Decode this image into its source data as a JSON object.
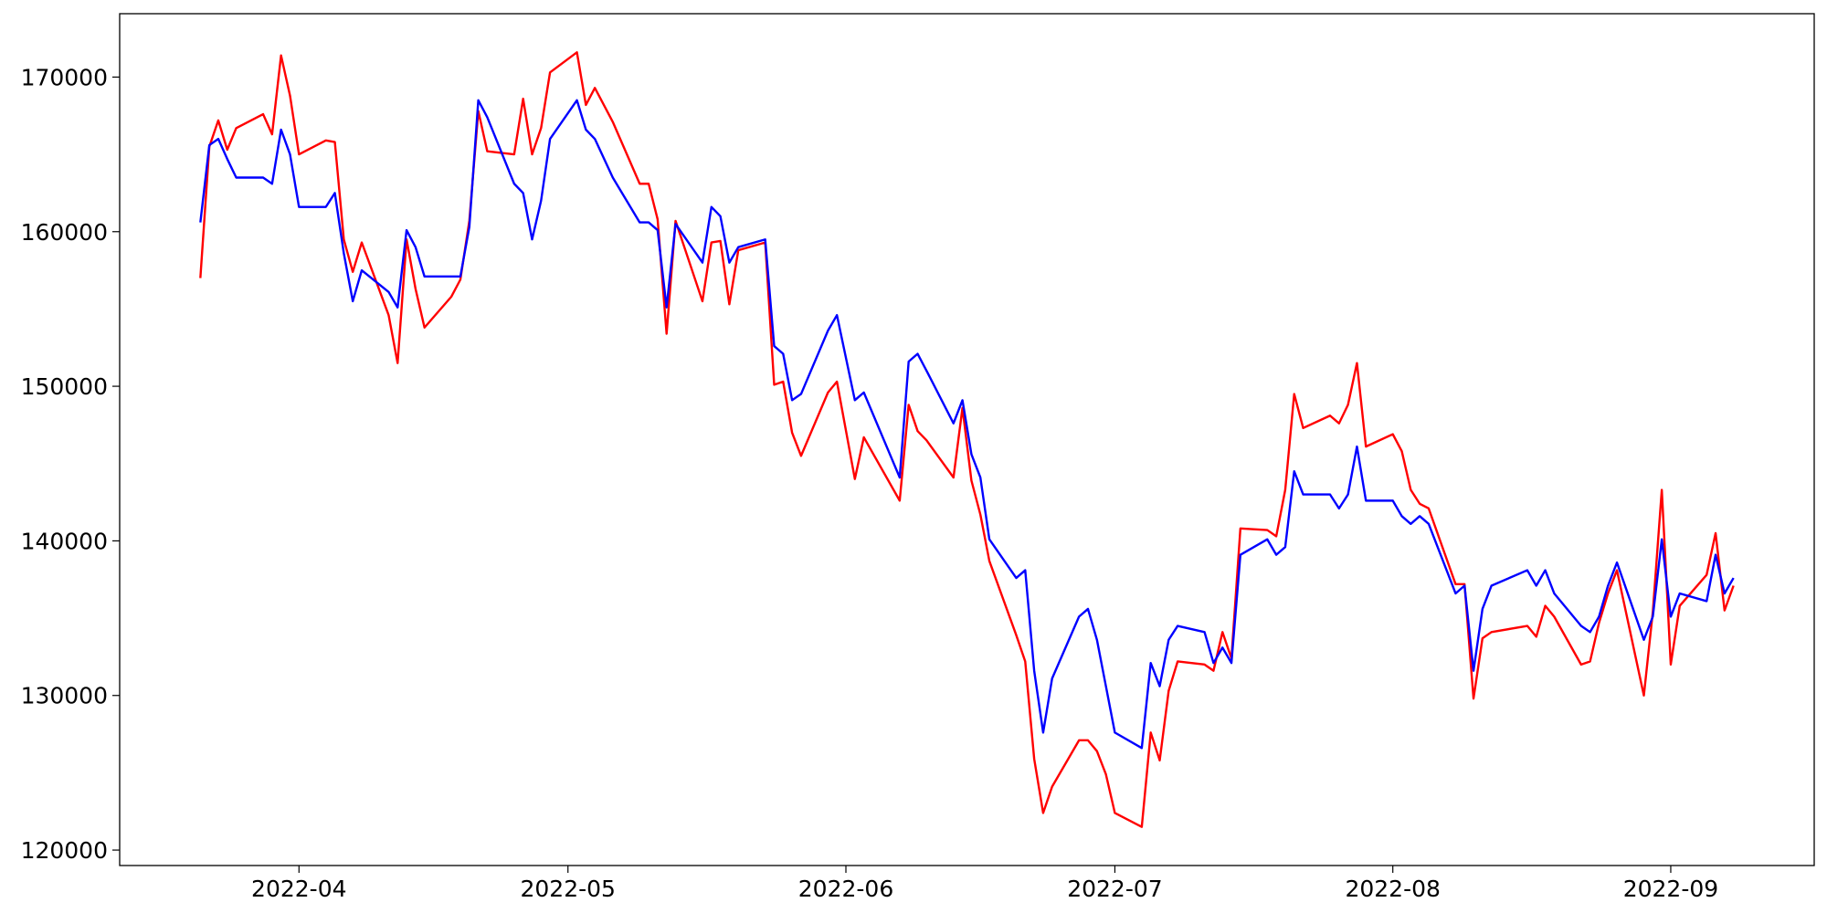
{
  "chart_data": {
    "type": "line",
    "x": [
      "2022-03-21",
      "2022-03-22",
      "2022-03-23",
      "2022-03-24",
      "2022-03-25",
      "2022-03-28",
      "2022-03-29",
      "2022-03-30",
      "2022-03-31",
      "2022-04-01",
      "2022-04-04",
      "2022-04-05",
      "2022-04-06",
      "2022-04-07",
      "2022-04-08",
      "2022-04-11",
      "2022-04-12",
      "2022-04-13",
      "2022-04-14",
      "2022-04-15",
      "2022-04-18",
      "2022-04-19",
      "2022-04-20",
      "2022-04-21",
      "2022-04-22",
      "2022-04-25",
      "2022-04-26",
      "2022-04-27",
      "2022-04-28",
      "2022-04-29",
      "2022-05-02",
      "2022-05-03",
      "2022-05-04",
      "2022-05-06",
      "2022-05-09",
      "2022-05-10",
      "2022-05-11",
      "2022-05-12",
      "2022-05-13",
      "2022-05-16",
      "2022-05-17",
      "2022-05-18",
      "2022-05-19",
      "2022-05-20",
      "2022-05-23",
      "2022-05-24",
      "2022-05-25",
      "2022-05-26",
      "2022-05-27",
      "2022-05-30",
      "2022-05-31",
      "2022-06-02",
      "2022-06-03",
      "2022-06-07",
      "2022-06-08",
      "2022-06-09",
      "2022-06-10",
      "2022-06-13",
      "2022-06-14",
      "2022-06-15",
      "2022-06-16",
      "2022-06-17",
      "2022-06-20",
      "2022-06-21",
      "2022-06-22",
      "2022-06-23",
      "2022-06-24",
      "2022-06-27",
      "2022-06-28",
      "2022-06-29",
      "2022-06-30",
      "2022-07-01",
      "2022-07-04",
      "2022-07-05",
      "2022-07-06",
      "2022-07-07",
      "2022-07-08",
      "2022-07-11",
      "2022-07-12",
      "2022-07-13",
      "2022-07-14",
      "2022-07-15",
      "2022-07-18",
      "2022-07-19",
      "2022-07-20",
      "2022-07-21",
      "2022-07-22",
      "2022-07-25",
      "2022-07-26",
      "2022-07-27",
      "2022-07-28",
      "2022-07-29",
      "2022-08-01",
      "2022-08-02",
      "2022-08-03",
      "2022-08-04",
      "2022-08-05",
      "2022-08-08",
      "2022-08-09",
      "2022-08-10",
      "2022-08-11",
      "2022-08-12",
      "2022-08-16",
      "2022-08-17",
      "2022-08-18",
      "2022-08-19",
      "2022-08-22",
      "2022-08-23",
      "2022-08-24",
      "2022-08-25",
      "2022-08-26",
      "2022-08-29",
      "2022-08-30",
      "2022-08-31",
      "2022-09-01",
      "2022-09-02",
      "2022-09-05",
      "2022-09-06",
      "2022-09-07",
      "2022-09-08"
    ],
    "series": [
      {
        "color": "#ff0000",
        "values": [
          157000,
          165500,
          167200,
          165300,
          166700,
          167600,
          166300,
          171400,
          168800,
          165000,
          165900,
          165800,
          159500,
          157400,
          159300,
          154600,
          151500,
          159500,
          156300,
          153800,
          155800,
          156900,
          160700,
          167800,
          165200,
          165000,
          168600,
          165000,
          166700,
          170300,
          171600,
          168200,
          169300,
          167100,
          163100,
          163100,
          160800,
          153400,
          160700,
          155500,
          159300,
          159400,
          155300,
          158800,
          159300,
          150100,
          150300,
          147000,
          145500,
          149600,
          150300,
          144000,
          146700,
          142600,
          148800,
          147100,
          146500,
          144100,
          148600,
          143900,
          141700,
          138700,
          133900,
          132200,
          125900,
          122400,
          124100,
          127100,
          127100,
          126400,
          124900,
          122400,
          121500,
          127600,
          125800,
          130300,
          132200,
          132000,
          131600,
          134100,
          132400,
          140800,
          140700,
          140300,
          143300,
          149500,
          147300,
          148100,
          147600,
          148800,
          151500,
          146100,
          146900,
          145800,
          143300,
          142400,
          142100,
          137200,
          137200,
          129800,
          133700,
          134100,
          134500,
          133800,
          135800,
          135100,
          132000,
          132200,
          134700,
          136600,
          138100,
          130000,
          135400,
          143300,
          132000,
          135800,
          137800,
          140500,
          135500,
          137100
        ]
      },
      {
        "color": "#0000ff",
        "values": [
          160600,
          165600,
          166000,
          164700,
          163500,
          163500,
          163100,
          166600,
          165000,
          161600,
          161600,
          162500,
          158600,
          155500,
          157500,
          156100,
          155100,
          160100,
          159000,
          157100,
          157100,
          157100,
          160300,
          168500,
          167400,
          163100,
          162500,
          159500,
          162000,
          166000,
          168500,
          166600,
          166000,
          163500,
          160600,
          160600,
          160100,
          155100,
          160500,
          158000,
          161600,
          161000,
          158000,
          159000,
          159500,
          152600,
          152100,
          149100,
          149500,
          153600,
          154600,
          149100,
          149600,
          144100,
          151600,
          152100,
          151000,
          147600,
          149100,
          145600,
          144100,
          140100,
          137600,
          138100,
          131600,
          127600,
          131100,
          135100,
          135600,
          133600,
          130600,
          127600,
          126600,
          132100,
          130600,
          133600,
          134500,
          134100,
          132100,
          133100,
          132100,
          139100,
          140100,
          139100,
          139600,
          144500,
          143000,
          143000,
          142100,
          143000,
          146100,
          142600,
          142600,
          141600,
          141100,
          141600,
          141100,
          136600,
          137100,
          131600,
          135600,
          137100,
          138100,
          137100,
          138100,
          136600,
          134500,
          134100,
          135100,
          137100,
          138600,
          133600,
          135100,
          140100,
          135100,
          136600,
          136100,
          139100,
          136600,
          137600
        ]
      }
    ],
    "xlim": [
      "2022-03-12",
      "2022-09-17"
    ],
    "xticks": [
      {
        "value": "2022-04-01",
        "label": "2022-04"
      },
      {
        "value": "2022-05-01",
        "label": "2022-05"
      },
      {
        "value": "2022-06-01",
        "label": "2022-06"
      },
      {
        "value": "2022-07-01",
        "label": "2022-07"
      },
      {
        "value": "2022-08-01",
        "label": "2022-08"
      },
      {
        "value": "2022-09-01",
        "label": "2022-09"
      }
    ],
    "ylim": [
      119000,
      174100
    ],
    "yticks": [
      120000,
      130000,
      140000,
      150000,
      160000,
      170000
    ],
    "grid": false
  }
}
